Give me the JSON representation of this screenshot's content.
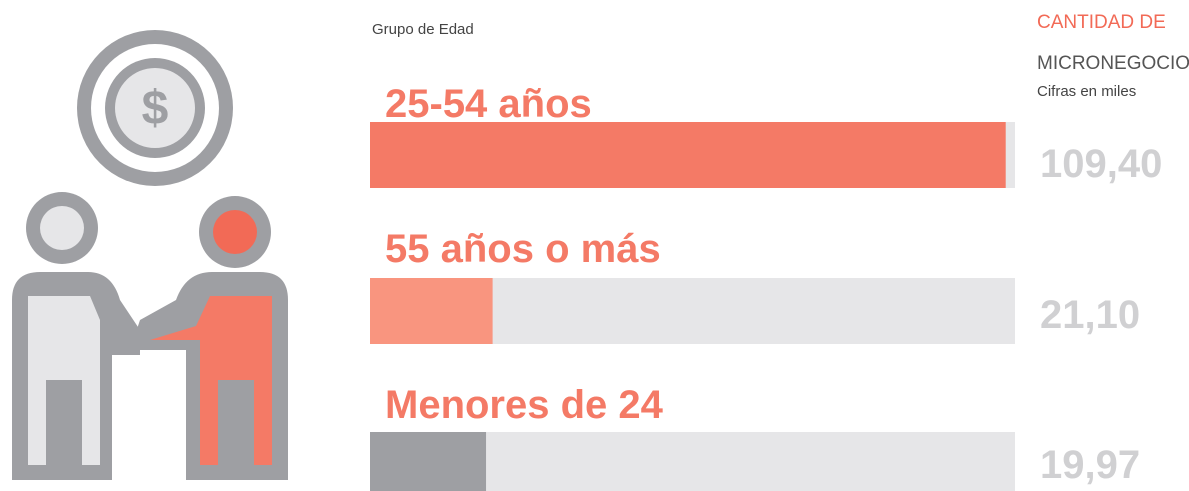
{
  "chart_data": {
    "type": "bar",
    "orientation": "horizontal",
    "category_header": "Grupo de Edad",
    "value_header": [
      "CANTIDAD DE",
      "MICRONEGOCIOS"
    ],
    "value_note": "Cifras en miles",
    "categories": [
      "25-54 años",
      "55 años o más",
      "Menores de 24"
    ],
    "values": [
      109.4,
      21.1,
      19.97
    ],
    "value_labels": [
      "109,40",
      "21,10",
      "19,97"
    ],
    "colors": [
      "#f47a66",
      "#f9957f",
      "#9e9fa3"
    ],
    "track_color": "#e6e6e8",
    "xlim": [
      0,
      111
    ]
  }
}
